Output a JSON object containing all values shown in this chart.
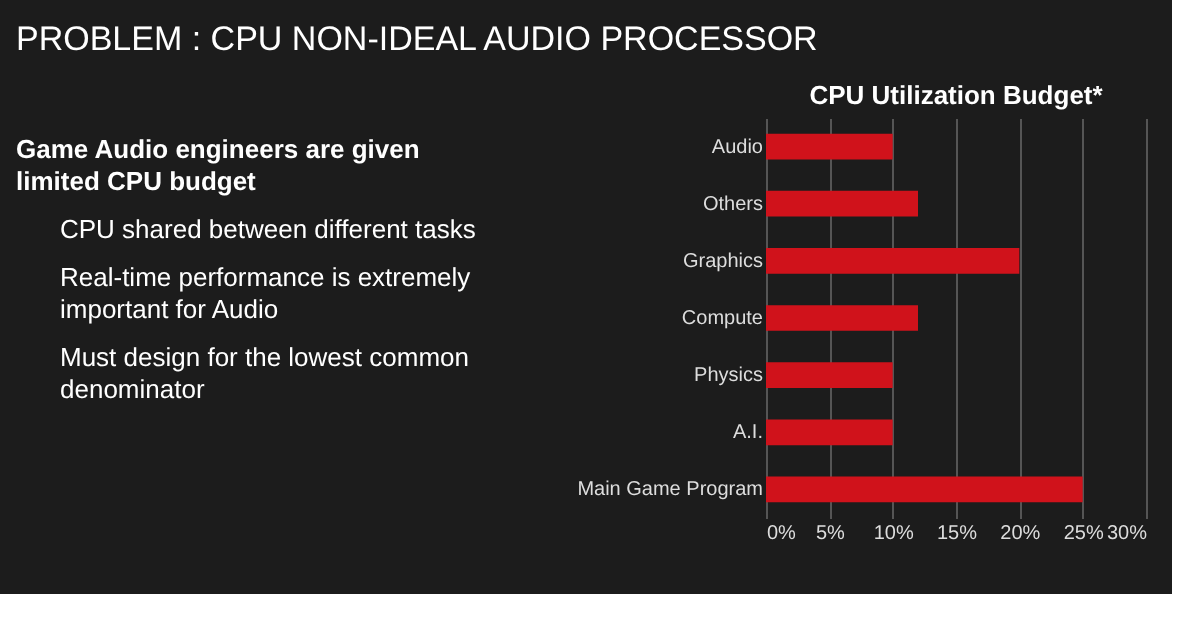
{
  "chart_data": {
    "type": "bar",
    "orientation": "horizontal",
    "title": "CPU Utilization Budget*",
    "categories": [
      "Audio",
      "Others",
      "Graphics",
      "Compute",
      "Physics",
      "A.I.",
      "Main Game Program"
    ],
    "values": [
      10,
      12,
      20,
      12,
      10,
      10,
      25
    ],
    "color": "#d0121b",
    "xlim": [
      0,
      30
    ],
    "xticks": [
      {
        "value": 0,
        "label": "0%"
      },
      {
        "value": 5,
        "label": "5%"
      },
      {
        "value": 10,
        "label": "10%"
      },
      {
        "value": 15,
        "label": "15%"
      },
      {
        "value": 20,
        "label": "20%"
      },
      {
        "value": 25,
        "label": "25%"
      },
      {
        "value": 30,
        "label": "30%"
      }
    ],
    "grid": "x",
    "annotations": [
      "PROBLEM : CPU NON-IDEAL AUDIO PROCESSOR",
      "Game Audio engineers are given limited CPU budget",
      "CPU shared between different tasks",
      "Real-time performance is extremely important for Audio",
      "Must design for the lowest common denominator"
    ]
  }
}
